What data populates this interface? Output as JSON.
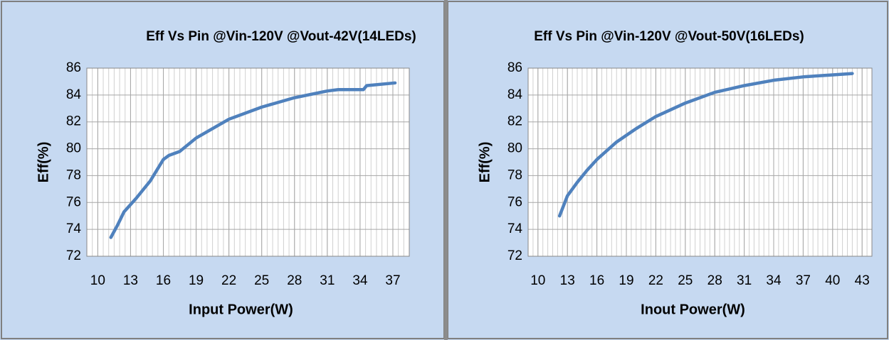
{
  "chart_data": [
    {
      "type": "line",
      "title": "Eff Vs Pin @Vin-120V @Vout-42V(14LEDs)",
      "x_label": "Input Power(W)",
      "y_label": "Eff(%)",
      "x": [
        11.2,
        11.8,
        12.4,
        13.5,
        14.8,
        16,
        16.5,
        17.5,
        19,
        20.5,
        22,
        25,
        28,
        31,
        32,
        34.3,
        34.6,
        37.2
      ],
      "series": [
        {
          "name": "Eff",
          "color": "#4f81bd",
          "values": [
            73.4,
            74.3,
            75.3,
            76.3,
            77.6,
            79.2,
            79.5,
            79.8,
            80.8,
            81.5,
            82.2,
            83.1,
            83.8,
            84.3,
            84.4,
            84.4,
            84.7,
            84.9
          ]
        }
      ],
      "xlim": [
        9,
        38.5
      ],
      "xticks": [
        10,
        13,
        16,
        19,
        22,
        25,
        28,
        31,
        34,
        37
      ],
      "ylim": [
        72,
        86
      ],
      "yticks": [
        72,
        74,
        76,
        78,
        80,
        82,
        84,
        86
      ],
      "grid": true
    },
    {
      "type": "line",
      "title": "Eff Vs Pin @Vin-120V @Vout-50V(16LEDs)",
      "x_label": "Inout Power(W)",
      "y_label": "Eff(%)",
      "x": [
        12.2,
        13,
        14,
        15,
        16,
        18,
        20,
        22,
        25,
        28,
        31,
        34,
        37,
        40,
        42
      ],
      "series": [
        {
          "name": "Eff",
          "color": "#4f81bd",
          "values": [
            75,
            76.5,
            77.5,
            78.4,
            79.2,
            80.5,
            81.5,
            82.4,
            83.4,
            84.2,
            84.7,
            85.1,
            85.35,
            85.5,
            85.6
          ]
        }
      ],
      "xlim": [
        9,
        44
      ],
      "xticks": [
        10,
        13,
        16,
        19,
        22,
        25,
        28,
        31,
        34,
        37,
        40,
        43
      ],
      "ylim": [
        72,
        86
      ],
      "yticks": [
        72,
        74,
        76,
        78,
        80,
        82,
        84,
        86
      ],
      "grid": true
    }
  ]
}
